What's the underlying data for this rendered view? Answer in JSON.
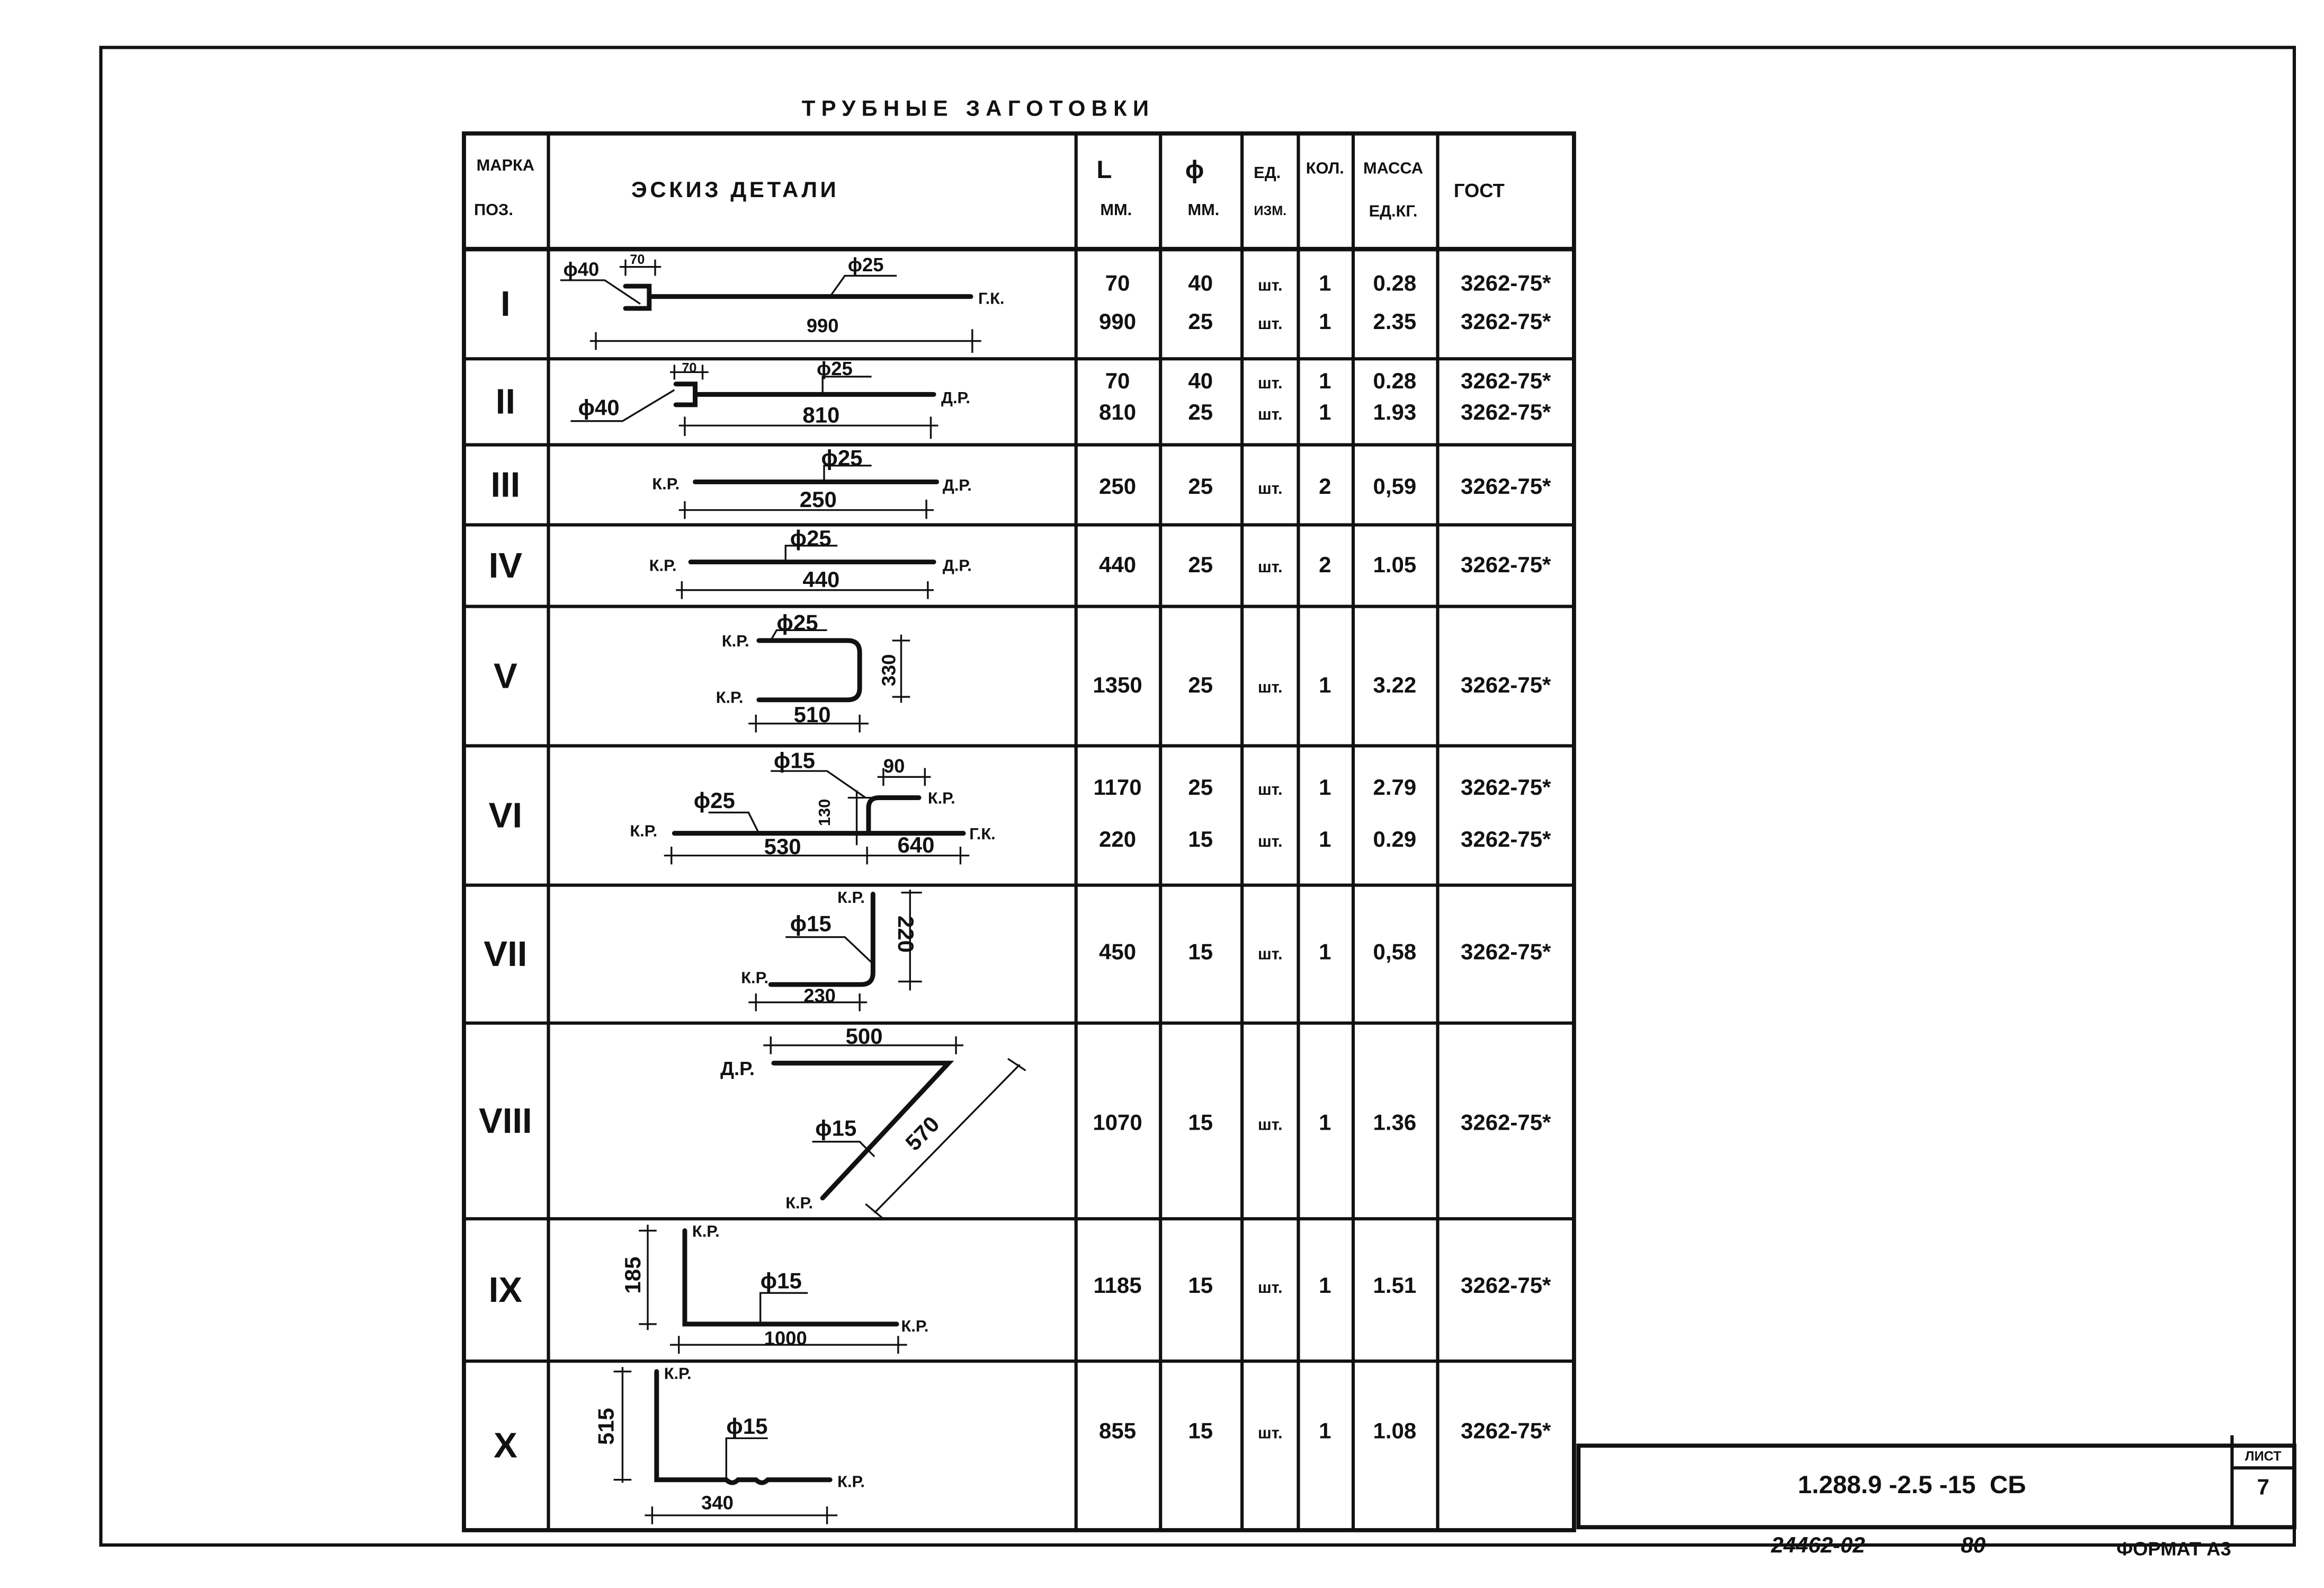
{
  "title": "ТРУБНЫЕ ЗАГОТОВКИ",
  "table": {
    "headers": {
      "mark": [
        "МАРКА",
        "ПОЗ."
      ],
      "sketch": "ЭСКИЗ ДЕТАЛИ",
      "length": [
        "L",
        "ММ."
      ],
      "diameter": [
        "ϕ",
        "ММ."
      ],
      "unit": [
        "ЕД.",
        "ИЗМ."
      ],
      "qty": "КОЛ.",
      "mass": [
        "МАССА",
        "ЕД.КГ."
      ],
      "gost": "ГОСТ"
    },
    "rows": [
      {
        "mark": "I",
        "sketch_labels": [
          "ϕ40",
          "70",
          "ϕ25",
          "Г.К.",
          "990"
        ],
        "lines": [
          {
            "L": "70",
            "d": "40",
            "unit": "шт.",
            "qty": "1",
            "mass": "0.28",
            "gost": "3262-75*"
          },
          {
            "L": "990",
            "d": "25",
            "unit": "шт.",
            "qty": "1",
            "mass": "2.35",
            "gost": "3262-75*"
          }
        ]
      },
      {
        "mark": "II",
        "sketch_labels": [
          "70",
          "ϕ25",
          "ϕ40",
          "Д.Р.",
          "810"
        ],
        "lines": [
          {
            "L": "70",
            "d": "40",
            "unit": "шт.",
            "qty": "1",
            "mass": "0.28",
            "gost": "3262-75*"
          },
          {
            "L": "810",
            "d": "25",
            "unit": "шт.",
            "qty": "1",
            "mass": "1.93",
            "gost": "3262-75*"
          }
        ]
      },
      {
        "mark": "III",
        "sketch_labels": [
          "ϕ25",
          "К.Р.",
          "Д.Р.",
          "250"
        ],
        "lines": [
          {
            "L": "250",
            "d": "25",
            "unit": "шт.",
            "qty": "2",
            "mass": "0,59",
            "gost": "3262-75*"
          }
        ]
      },
      {
        "mark": "IV",
        "sketch_labels": [
          "ϕ25",
          "К.Р.",
          "Д.Р.",
          "440"
        ],
        "lines": [
          {
            "L": "440",
            "d": "25",
            "unit": "шт.",
            "qty": "2",
            "mass": "1.05",
            "gost": "3262-75*"
          }
        ]
      },
      {
        "mark": "V",
        "sketch_labels": [
          "ϕ25",
          "К.Р.",
          "К.Р.",
          "330",
          "510"
        ],
        "lines": [
          {
            "L": "1350",
            "d": "25",
            "unit": "шт.",
            "qty": "1",
            "mass": "3.22",
            "gost": "3262-75*"
          }
        ]
      },
      {
        "mark": "VI",
        "sketch_labels": [
          "ϕ15",
          "90",
          "ϕ25",
          "К.Р.",
          "К.Р.",
          "Г.К.",
          "130",
          "530",
          "640"
        ],
        "lines": [
          {
            "L": "1170",
            "d": "25",
            "unit": "шт.",
            "qty": "1",
            "mass": "2.79",
            "gost": "3262-75*"
          },
          {
            "L": "220",
            "d": "15",
            "unit": "шт.",
            "qty": "1",
            "mass": "0.29",
            "gost": "3262-75*"
          }
        ]
      },
      {
        "mark": "VII",
        "sketch_labels": [
          "К.Р.",
          "ϕ15",
          "К.Р.",
          "220",
          "230"
        ],
        "lines": [
          {
            "L": "450",
            "d": "15",
            "unit": "шт.",
            "qty": "1",
            "mass": "0,58",
            "gost": "3262-75*"
          }
        ]
      },
      {
        "mark": "VIII",
        "sketch_labels": [
          "500",
          "Д.Р.",
          "ϕ15",
          "570",
          "К.Р."
        ],
        "lines": [
          {
            "L": "1070",
            "d": "15",
            "unit": "шт.",
            "qty": "1",
            "mass": "1.36",
            "gost": "3262-75*"
          }
        ]
      },
      {
        "mark": "IX",
        "sketch_labels": [
          "К.Р.",
          "185",
          "ϕ15",
          "К.Р.",
          "1000"
        ],
        "lines": [
          {
            "L": "1185",
            "d": "15",
            "unit": "шт.",
            "qty": "1",
            "mass": "1.51",
            "gost": "3262-75*"
          }
        ]
      },
      {
        "mark": "X",
        "sketch_labels": [
          "К.Р.",
          "515",
          "ϕ15",
          "К.Р.",
          "340"
        ],
        "lines": [
          {
            "L": "855",
            "d": "15",
            "unit": "шт.",
            "qty": "1",
            "mass": "1.08",
            "gost": "3262-75*"
          }
        ]
      }
    ]
  },
  "title_block": {
    "designation": "1.288.9 -2.5 -15  СБ",
    "sheet_label": "ЛИСТ",
    "sheet_number": "7"
  },
  "footer": {
    "inventory": "24462-02",
    "code": "80",
    "format": "ФОРМАТ А3"
  }
}
